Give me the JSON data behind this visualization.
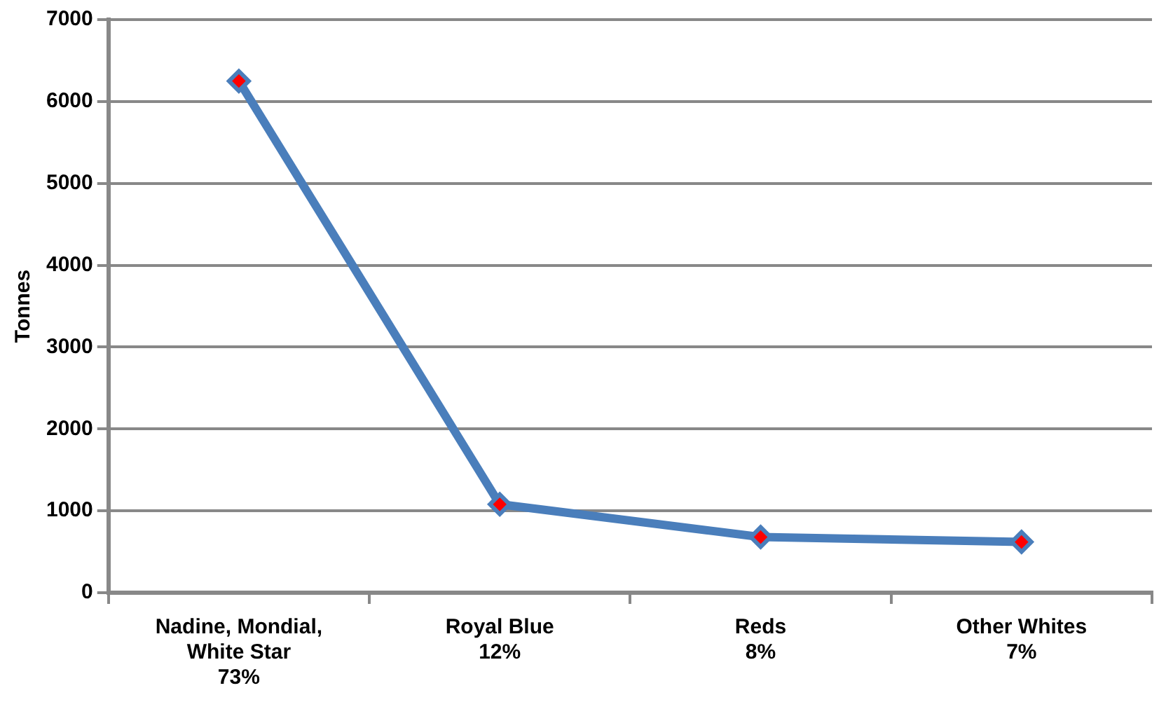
{
  "chart_data": {
    "type": "line",
    "ylabel": "Tonnes",
    "categories": [
      "Nadine, Mondial,\nWhite Star\n73%",
      "Royal Blue\n12%",
      "Reds\n8%",
      "Other Whites\n7%"
    ],
    "series": [
      {
        "color": "#4a7ebb",
        "values": [
          6250,
          1080,
          680,
          620
        ]
      }
    ],
    "ylim": [
      0,
      7000
    ],
    "yticks": [
      0,
      1000,
      2000,
      3000,
      4000,
      5000,
      6000,
      7000
    ],
    "grid": "y",
    "legend": false,
    "marker": "diamond",
    "line_style": "solid"
  }
}
